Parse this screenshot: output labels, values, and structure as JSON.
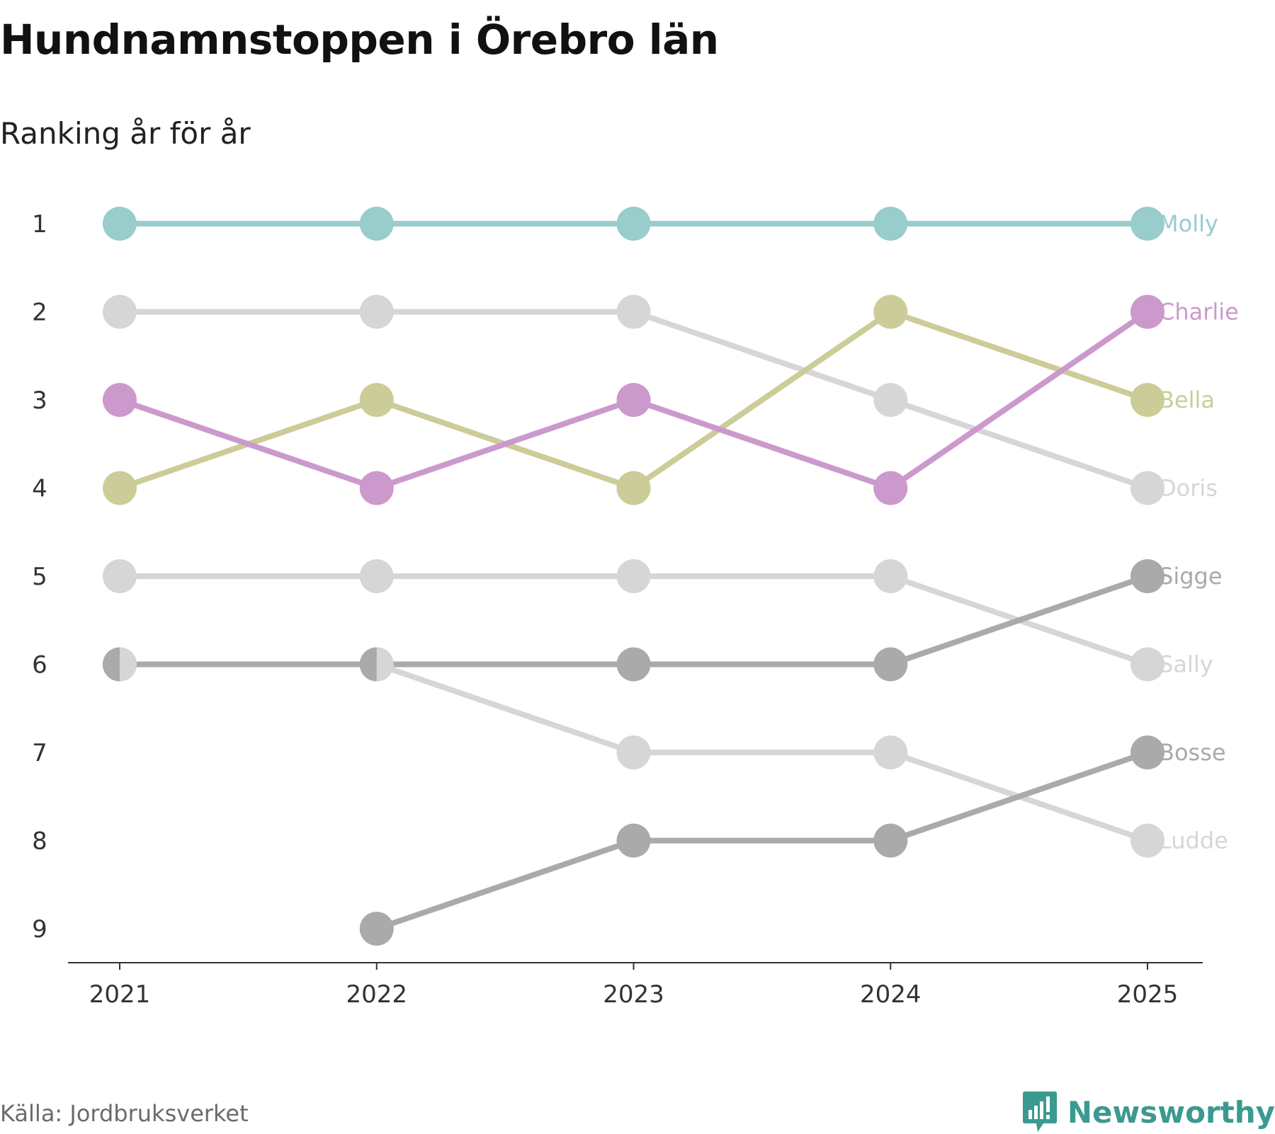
{
  "title": "Hundnamnstoppen i Örebro län",
  "subtitle": "Ranking år för år",
  "source": "Källa: Jordbruksverket",
  "brand": "Newsworthy",
  "brand_color": "#3b9a8f",
  "chart_data": {
    "type": "line",
    "subtype": "bump",
    "title": "Hundnamnstoppen i Örebro län",
    "subtitle": "Ranking år för år",
    "xlabel": "",
    "ylabel": "",
    "y_reversed": true,
    "ylim": [
      1,
      9
    ],
    "x": [
      "2021",
      "2022",
      "2023",
      "2024",
      "2025"
    ],
    "y_ticks": [
      "1",
      "2",
      "3",
      "4",
      "5",
      "6",
      "7",
      "8",
      "9"
    ],
    "series": [
      {
        "name": "Molly",
        "color": "#99cccc",
        "values": [
          1,
          1,
          1,
          1,
          1
        ]
      },
      {
        "name": "Doris",
        "color": "#d6d6d6",
        "values": [
          2,
          2,
          2,
          3,
          4
        ]
      },
      {
        "name": "Sally",
        "color": "#d6d6d6",
        "values": [
          5,
          5,
          5,
          5,
          6
        ]
      },
      {
        "name": "Ludde",
        "color": "#d6d6d6",
        "values": [
          6,
          6,
          7,
          7,
          8
        ]
      },
      {
        "name": "Sigge",
        "color": "#aaaaaa",
        "values": [
          6,
          6,
          6,
          6,
          5
        ]
      },
      {
        "name": "Bosse",
        "color": "#aaaaaa",
        "values": [
          null,
          9,
          8,
          8,
          7
        ]
      },
      {
        "name": "Bella",
        "color": "#cccc99",
        "values": [
          4,
          3,
          4,
          2,
          3
        ]
      },
      {
        "name": "Charlie",
        "color": "#cc99cc",
        "values": [
          3,
          4,
          3,
          4,
          2
        ]
      }
    ]
  }
}
